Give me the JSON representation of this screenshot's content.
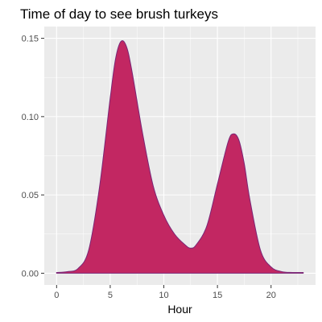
{
  "chart_data": {
    "type": "area",
    "title": "Time of day to see brush turkeys",
    "xlabel": "Hour",
    "ylabel": "",
    "xlim": [
      -1.15,
      24.15
    ],
    "ylim": [
      -0.0075,
      0.1575
    ],
    "x_ticks": [
      0,
      5,
      10,
      15,
      20
    ],
    "x_tick_labels": [
      "0",
      "5",
      "10",
      "15",
      "20"
    ],
    "y_ticks": [
      0.0,
      0.05,
      0.1,
      0.15
    ],
    "y_tick_labels": [
      "0.00",
      "0.05",
      "0.10",
      "0.15"
    ],
    "grid": true,
    "legend": "none",
    "series": [
      {
        "x": [
          0,
          1,
          2,
          3,
          4,
          5,
          5.5,
          6,
          6.5,
          7,
          8,
          9,
          10,
          11,
          12,
          12.5,
          13,
          14,
          15,
          16,
          16.5,
          17,
          17.5,
          18,
          19,
          20,
          21,
          22,
          23
        ],
        "y": [
          0.0005,
          0.001,
          0.003,
          0.015,
          0.055,
          0.112,
          0.137,
          0.148,
          0.145,
          0.13,
          0.09,
          0.056,
          0.037,
          0.025,
          0.018,
          0.016,
          0.018,
          0.03,
          0.057,
          0.084,
          0.089,
          0.085,
          0.07,
          0.048,
          0.015,
          0.004,
          0.001,
          0.0005,
          0.0005
        ],
        "fill_color": "#c22762",
        "line_color": "#7a2576"
      }
    ]
  },
  "colors": {
    "panel_background": "#ebebeb",
    "grid_major": "#ffffff",
    "tick_text": "#4d4d4d",
    "tick_mark": "#333333"
  }
}
